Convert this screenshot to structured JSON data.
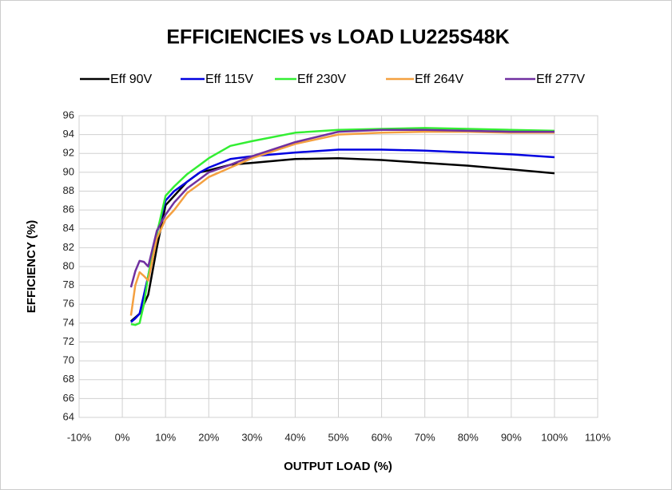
{
  "chart_data": {
    "type": "line",
    "title": "EFFICIENCIES vs LOAD LU225S48K",
    "xlabel": "OUTPUT LOAD (%)",
    "ylabel": "EFFICIENCY (%)",
    "x": [
      2,
      3,
      4,
      5,
      6,
      8,
      10,
      12,
      15,
      18,
      20,
      25,
      30,
      40,
      50,
      60,
      70,
      80,
      90,
      100
    ],
    "series": [
      {
        "name": "Eff 90V",
        "color": "#000000",
        "values": [
          74.2,
          74.6,
          75,
          76,
          77,
          82,
          86.5,
          87.5,
          89,
          90,
          90.2,
          90.8,
          91,
          91.4,
          91.5,
          91.3,
          91,
          90.7,
          90.3,
          89.9
        ]
      },
      {
        "name": "Eff 115V",
        "color": "#0000e0",
        "values": [
          74.1,
          74.5,
          75,
          77,
          79,
          83.5,
          87,
          88,
          89,
          90,
          90.5,
          91.4,
          91.7,
          92.1,
          92.4,
          92.4,
          92.3,
          92.1,
          91.9,
          91.6
        ]
      },
      {
        "name": "Eff 230V",
        "color": "#33ee33",
        "values": [
          73.9,
          73.8,
          74,
          76,
          79,
          83.5,
          87.5,
          88.5,
          89.8,
          90.8,
          91.5,
          92.8,
          93.3,
          94.2,
          94.5,
          94.6,
          94.7,
          94.6,
          94.5,
          94.4
        ]
      },
      {
        "name": "Eff 264V",
        "color": "#f4a040",
        "values": [
          74.8,
          78,
          79.4,
          79,
          78.5,
          83,
          85,
          86,
          87.8,
          88.8,
          89.5,
          90.5,
          91.5,
          93,
          94,
          94.2,
          94.3,
          94.3,
          94.2,
          94.2
        ]
      },
      {
        "name": "Eff 277V",
        "color": "#7030a0",
        "values": [
          77.8,
          79.5,
          80.6,
          80.5,
          80,
          83.8,
          85.5,
          86.8,
          88.3,
          89.3,
          90,
          90.8,
          91.7,
          93.2,
          94.3,
          94.5,
          94.5,
          94.4,
          94.3,
          94.3
        ]
      }
    ],
    "xlim": [
      -10,
      110
    ],
    "xticks": [
      {
        "value": -10,
        "label": "-10%"
      },
      {
        "value": 0,
        "label": "0%"
      },
      {
        "value": 10,
        "label": "10%"
      },
      {
        "value": 20,
        "label": "20%"
      },
      {
        "value": 30,
        "label": "30%"
      },
      {
        "value": 40,
        "label": "40%"
      },
      {
        "value": 50,
        "label": "50%"
      },
      {
        "value": 60,
        "label": "60%"
      },
      {
        "value": 70,
        "label": "70%"
      },
      {
        "value": 80,
        "label": "80%"
      },
      {
        "value": 90,
        "label": "90%"
      },
      {
        "value": 100,
        "label": "100%"
      },
      {
        "value": 110,
        "label": "110%"
      }
    ],
    "ylim": [
      64,
      96
    ],
    "yticks": [
      64,
      66,
      68,
      70,
      72,
      74,
      76,
      78,
      80,
      82,
      84,
      86,
      88,
      90,
      92,
      94,
      96
    ],
    "grid": true,
    "legend": "top"
  }
}
